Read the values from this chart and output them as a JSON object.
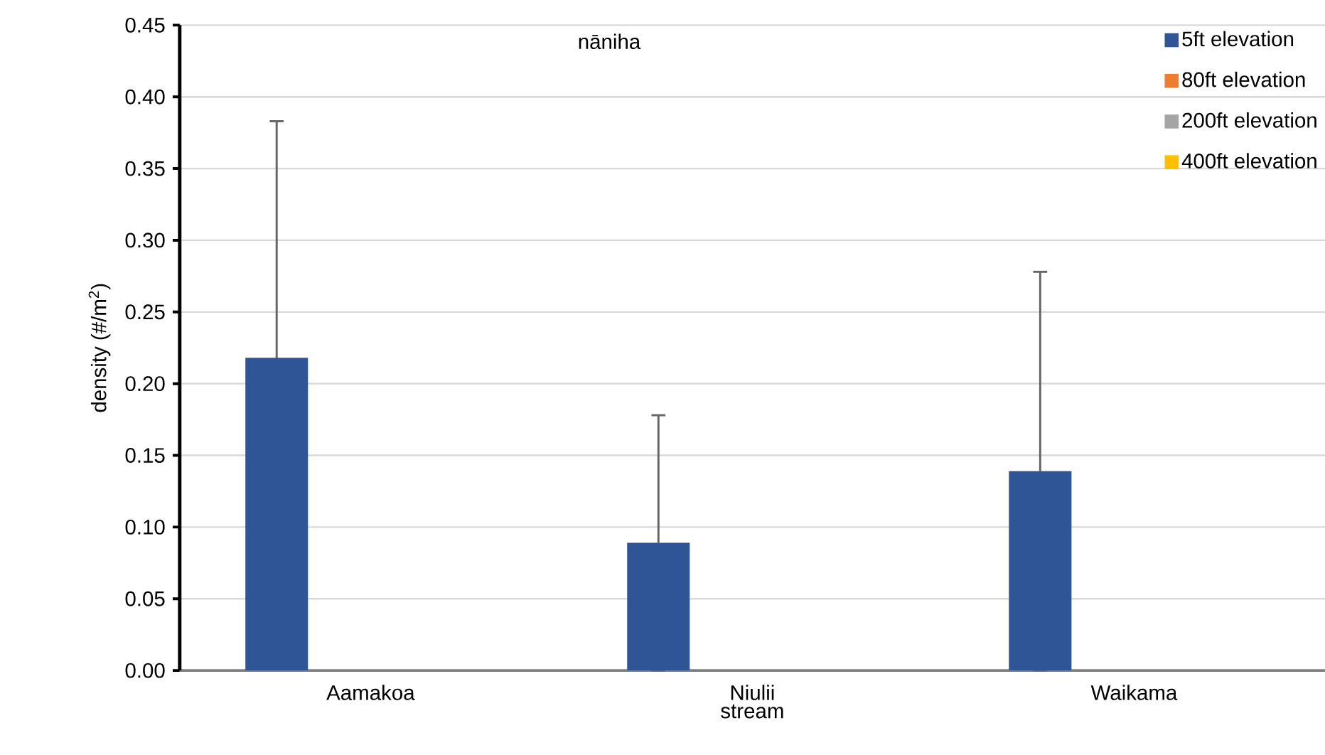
{
  "chart_data": {
    "type": "bar",
    "title": "nāniha",
    "xlabel": "stream",
    "ylabel": "density (#/m$^{2}$)",
    "categories": [
      "Aamakoa",
      "Niulii",
      "Waikama"
    ],
    "series": [
      {
        "name": "5ft elevation",
        "color": "#2f5597",
        "values": [
          0.218,
          0.089,
          0.139
        ],
        "errors": [
          0.165,
          0.089,
          0.139
        ]
      },
      {
        "name": "80ft elevation",
        "color": "#ed7d31",
        "values": [
          null,
          null,
          null
        ]
      },
      {
        "name": "200ft elevation",
        "color": "#a5a5a5",
        "values": [
          null,
          null,
          null
        ]
      },
      {
        "name": "400ft elevation",
        "color": "#ffc000",
        "values": [
          null,
          null,
          null
        ]
      }
    ],
    "ylim": [
      0,
      0.45
    ],
    "yticks": [
      {
        "value": 0,
        "label": "0.00"
      },
      {
        "value": 0.05,
        "label": "0.05"
      },
      {
        "value": 0.1,
        "label": "0.10"
      },
      {
        "value": 0.15,
        "label": "0.15"
      },
      {
        "value": 0.2,
        "label": "0.20"
      },
      {
        "value": 0.25,
        "label": "0.25"
      },
      {
        "value": 0.3,
        "label": "0.30"
      },
      {
        "value": 0.35,
        "label": "0.35"
      },
      {
        "value": 0.4,
        "label": "0.40"
      },
      {
        "value": 0.45,
        "label": "0.45"
      }
    ],
    "grid": "y",
    "legend": "top right"
  }
}
